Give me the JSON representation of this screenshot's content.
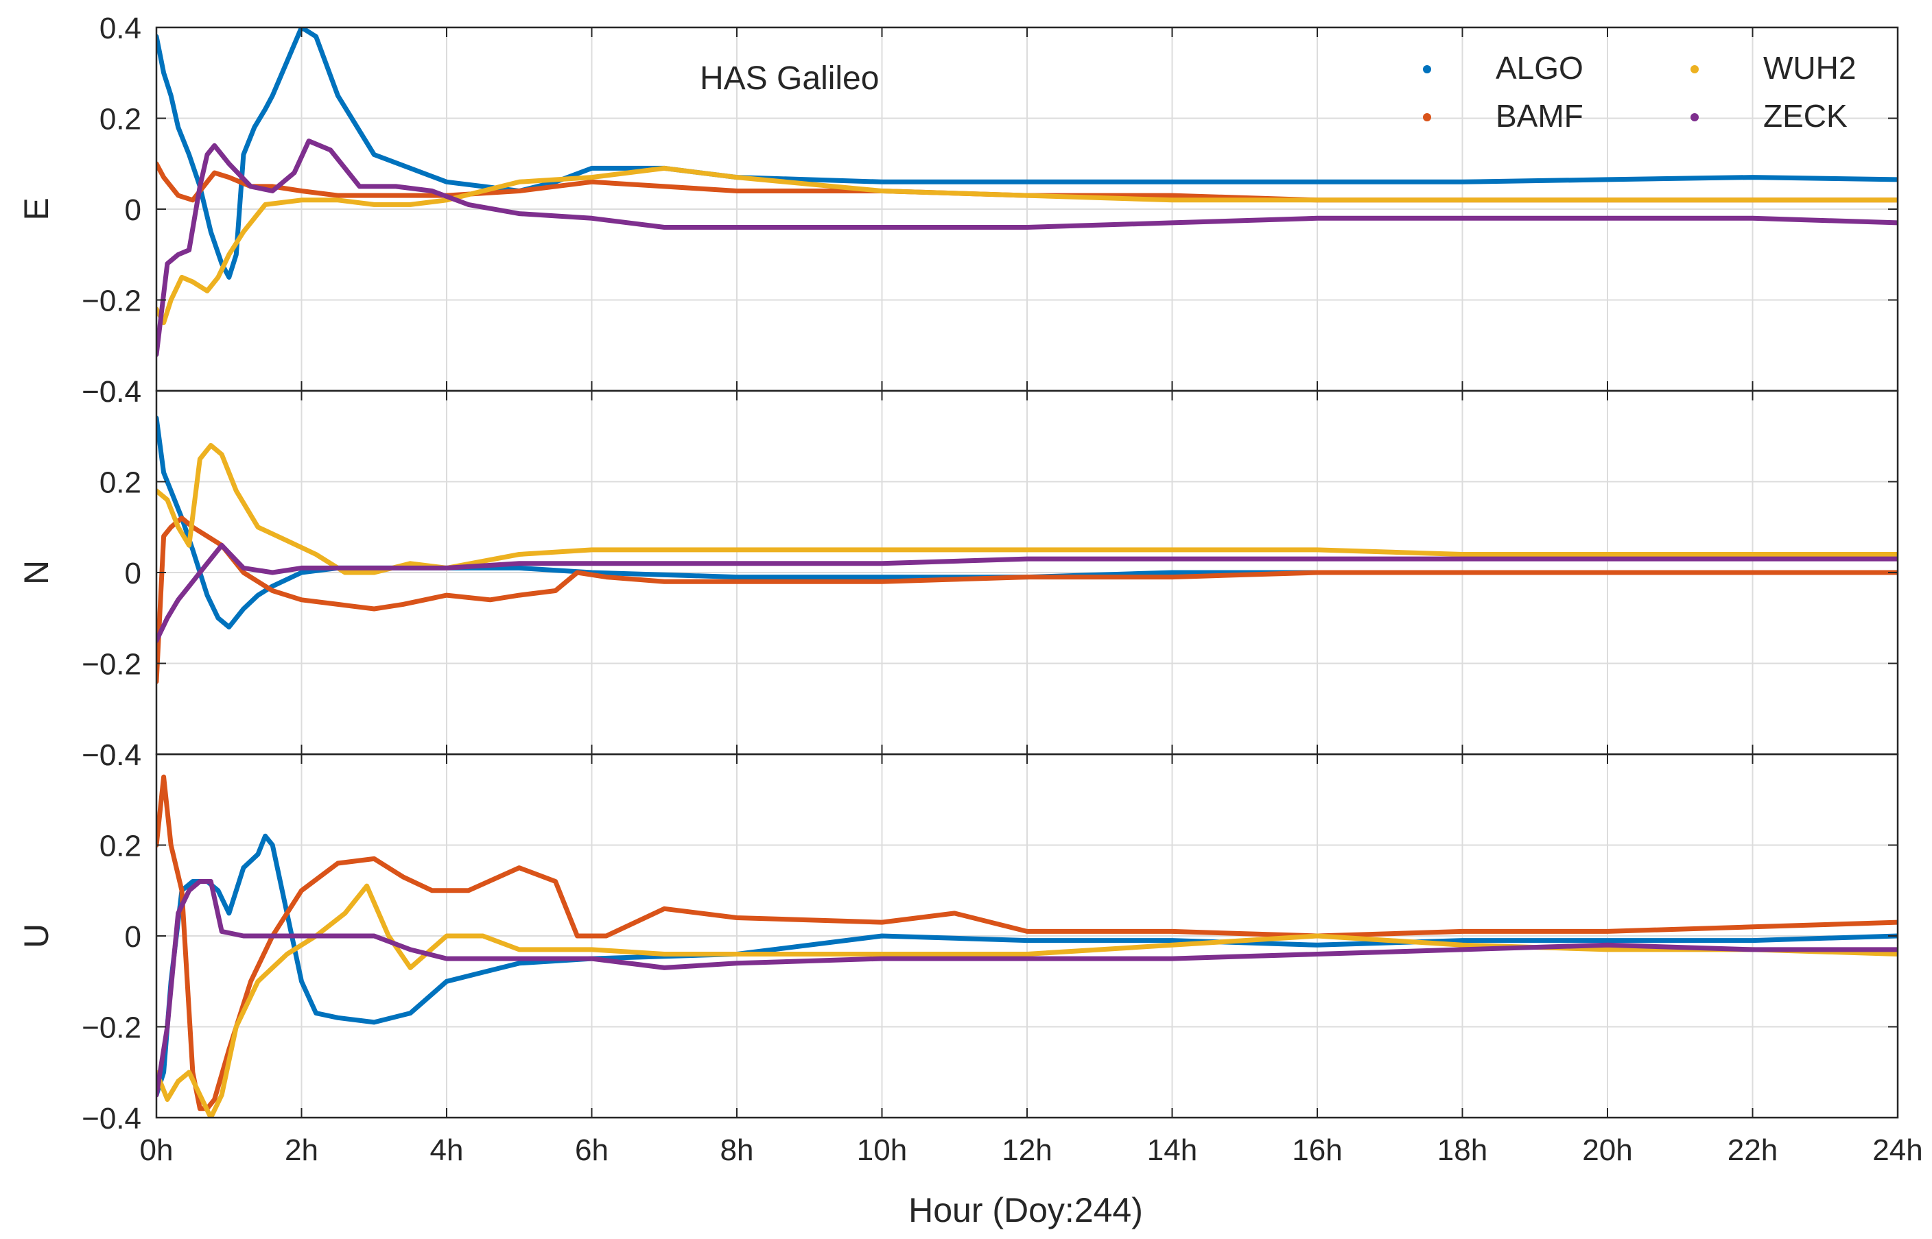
{
  "chart_data": {
    "type": "line",
    "title": "HAS Galileo",
    "xlabel": "Hour (Doy:244)",
    "x_ticks": [
      "0h",
      "2h",
      "4h",
      "6h",
      "8h",
      "10h",
      "12h",
      "14h",
      "16h",
      "18h",
      "20h",
      "22h",
      "24h"
    ],
    "xlim": [
      0,
      24
    ],
    "ylim": [
      -0.4,
      0.4
    ],
    "y_ticks": [
      "−0.4",
      "−0.2",
      "0",
      "0.2",
      "0.4"
    ],
    "grid": true,
    "legend_position": "top-right",
    "series_meta": [
      {
        "name": "ALGO",
        "color": "#0072BD"
      },
      {
        "name": "BAMF",
        "color": "#D95319"
      },
      {
        "name": "WUH2",
        "color": "#EDB120"
      },
      {
        "name": "ZECK",
        "color": "#7E2F8E"
      }
    ],
    "panels": [
      {
        "ylabel": "E",
        "series": [
          {
            "name": "ALGO",
            "x": [
              0,
              0.1,
              0.2,
              0.3,
              0.45,
              0.6,
              0.75,
              0.9,
              1.0,
              1.1,
              1.2,
              1.35,
              1.5,
              1.6,
              2.0,
              2.2,
              2.5,
              3.0,
              3.5,
              4.0,
              4.5,
              5.0,
              5.5,
              6.0,
              7.0,
              8.0,
              10.0,
              12.0,
              14.0,
              16.0,
              18.0,
              20.0,
              22.0,
              24.0
            ],
            "y": [
              0.38,
              0.3,
              0.25,
              0.18,
              0.12,
              0.05,
              -0.05,
              -0.12,
              -0.15,
              -0.1,
              0.12,
              0.18,
              0.22,
              0.25,
              0.4,
              0.38,
              0.25,
              0.12,
              0.09,
              0.06,
              0.05,
              0.04,
              0.06,
              0.09,
              0.09,
              0.07,
              0.06,
              0.06,
              0.06,
              0.06,
              0.06,
              0.065,
              0.07,
              0.065
            ]
          },
          {
            "name": "BAMF",
            "x": [
              0,
              0.1,
              0.2,
              0.3,
              0.5,
              0.8,
              1.0,
              1.3,
              1.6,
              2.0,
              2.5,
              3.0,
              3.5,
              4.0,
              5.0,
              6.0,
              7.0,
              8.0,
              10.0,
              12.0,
              14.0,
              16.0,
              18.0,
              20.0,
              22.0,
              24.0
            ],
            "y": [
              0.1,
              0.07,
              0.05,
              0.03,
              0.02,
              0.08,
              0.07,
              0.05,
              0.05,
              0.04,
              0.03,
              0.03,
              0.03,
              0.03,
              0.04,
              0.06,
              0.05,
              0.04,
              0.04,
              0.03,
              0.03,
              0.02,
              0.02,
              0.02,
              0.02,
              0.02
            ]
          },
          {
            "name": "WUH2",
            "x": [
              0,
              0.1,
              0.2,
              0.35,
              0.5,
              0.7,
              0.85,
              1.0,
              1.2,
              1.5,
              2.0,
              2.5,
              3.0,
              3.5,
              4.0,
              4.5,
              5.0,
              6.0,
              7.0,
              8.0,
              10.0,
              12.0,
              14.0,
              16.0,
              18.0,
              20.0,
              22.0,
              24.0
            ],
            "y": [
              -0.22,
              -0.25,
              -0.2,
              -0.15,
              -0.16,
              -0.18,
              -0.15,
              -0.1,
              -0.05,
              0.01,
              0.02,
              0.02,
              0.01,
              0.01,
              0.02,
              0.04,
              0.06,
              0.07,
              0.09,
              0.07,
              0.04,
              0.03,
              0.02,
              0.02,
              0.02,
              0.02,
              0.02,
              0.02
            ]
          },
          {
            "name": "ZECK",
            "x": [
              0,
              0.15,
              0.3,
              0.45,
              0.6,
              0.7,
              0.8,
              1.0,
              1.3,
              1.6,
              1.9,
              2.1,
              2.4,
              2.8,
              3.3,
              3.8,
              4.3,
              5.0,
              6.0,
              7.0,
              8.0,
              10.0,
              12.0,
              14.0,
              16.0,
              18.0,
              20.0,
              22.0,
              24.0
            ],
            "y": [
              -0.32,
              -0.12,
              -0.1,
              -0.09,
              0.05,
              0.12,
              0.14,
              0.1,
              0.05,
              0.04,
              0.08,
              0.15,
              0.13,
              0.05,
              0.05,
              0.04,
              0.01,
              -0.01,
              -0.02,
              -0.04,
              -0.04,
              -0.04,
              -0.04,
              -0.03,
              -0.02,
              -0.02,
              -0.02,
              -0.02,
              -0.03
            ]
          }
        ]
      },
      {
        "ylabel": "N",
        "series": [
          {
            "name": "ALGO",
            "x": [
              0,
              0.1,
              0.2,
              0.35,
              0.5,
              0.7,
              0.85,
              1.0,
              1.2,
              1.4,
              1.6,
              2.0,
              2.5,
              3.0,
              4.0,
              5.0,
              6.0,
              8.0,
              10.0,
              12.0,
              14.0,
              16.0,
              18.0,
              20.0,
              22.0,
              24.0
            ],
            "y": [
              0.34,
              0.22,
              0.18,
              0.12,
              0.05,
              -0.05,
              -0.1,
              -0.12,
              -0.08,
              -0.05,
              -0.03,
              0.0,
              0.01,
              0.01,
              0.01,
              0.01,
              0.0,
              -0.01,
              -0.01,
              -0.01,
              0.0,
              0.0,
              0.0,
              0.0,
              0.0,
              0.0
            ]
          },
          {
            "name": "BAMF",
            "x": [
              0,
              0.1,
              0.2,
              0.35,
              0.5,
              0.7,
              0.9,
              1.2,
              1.6,
              2.0,
              2.5,
              3.0,
              3.4,
              4.0,
              4.6,
              5.0,
              5.5,
              5.8,
              6.2,
              7.0,
              8.0,
              10.0,
              12.0,
              14.0,
              16.0,
              18.0,
              20.0,
              22.0,
              24.0
            ],
            "y": [
              -0.24,
              0.08,
              0.1,
              0.12,
              0.1,
              0.08,
              0.06,
              0.0,
              -0.04,
              -0.06,
              -0.07,
              -0.08,
              -0.07,
              -0.05,
              -0.06,
              -0.05,
              -0.04,
              0.0,
              -0.01,
              -0.02,
              -0.02,
              -0.02,
              -0.01,
              -0.01,
              0.0,
              0.0,
              0.0,
              0.0,
              0.0
            ]
          },
          {
            "name": "WUH2",
            "x": [
              0,
              0.15,
              0.3,
              0.45,
              0.6,
              0.75,
              0.9,
              1.1,
              1.4,
              1.8,
              2.2,
              2.6,
              3.0,
              3.5,
              4.0,
              5.0,
              6.0,
              7.0,
              8.0,
              10.0,
              12.0,
              14.0,
              16.0,
              18.0,
              20.0,
              22.0,
              24.0
            ],
            "y": [
              0.18,
              0.16,
              0.1,
              0.06,
              0.25,
              0.28,
              0.26,
              0.18,
              0.1,
              0.07,
              0.04,
              0.0,
              0.0,
              0.02,
              0.01,
              0.04,
              0.05,
              0.05,
              0.05,
              0.05,
              0.05,
              0.05,
              0.05,
              0.04,
              0.04,
              0.04,
              0.04
            ]
          },
          {
            "name": "ZECK",
            "x": [
              0,
              0.15,
              0.3,
              0.45,
              0.6,
              0.75,
              0.9,
              1.2,
              1.6,
              2.0,
              3.0,
              4.0,
              5.0,
              6.0,
              8.0,
              10.0,
              12.0,
              14.0,
              16.0,
              18.0,
              20.0,
              22.0,
              24.0
            ],
            "y": [
              -0.15,
              -0.1,
              -0.06,
              -0.03,
              0.0,
              0.03,
              0.06,
              0.01,
              0.0,
              0.01,
              0.01,
              0.01,
              0.02,
              0.02,
              0.02,
              0.02,
              0.03,
              0.03,
              0.03,
              0.03,
              0.03,
              0.03,
              0.03
            ]
          }
        ]
      },
      {
        "ylabel": "U",
        "series": [
          {
            "name": "ALGO",
            "x": [
              0,
              0.1,
              0.2,
              0.35,
              0.5,
              0.7,
              0.85,
              1.0,
              1.2,
              1.4,
              1.5,
              1.6,
              2.0,
              2.2,
              2.5,
              3.0,
              3.5,
              4.0,
              4.5,
              5.0,
              6.0,
              8.0,
              10.0,
              12.0,
              14.0,
              16.0,
              18.0,
              20.0,
              22.0,
              24.0
            ],
            "y": [
              -0.35,
              -0.3,
              -0.1,
              0.1,
              0.12,
              0.12,
              0.1,
              0.05,
              0.15,
              0.18,
              0.22,
              0.2,
              -0.1,
              -0.17,
              -0.18,
              -0.19,
              -0.17,
              -0.1,
              -0.08,
              -0.06,
              -0.05,
              -0.04,
              0.0,
              -0.01,
              -0.01,
              -0.02,
              -0.01,
              -0.01,
              -0.01,
              0.0
            ]
          },
          {
            "name": "BAMF",
            "x": [
              0,
              0.1,
              0.2,
              0.35,
              0.5,
              0.6,
              0.7,
              0.8,
              1.0,
              1.3,
              1.6,
              2.0,
              2.5,
              3.0,
              3.4,
              3.8,
              4.3,
              5.0,
              5.5,
              5.8,
              6.2,
              7.0,
              8.0,
              10.0,
              11.0,
              12.0,
              14.0,
              16.0,
              18.0,
              20.0,
              22.0,
              24.0
            ],
            "y": [
              0.2,
              0.35,
              0.2,
              0.1,
              -0.3,
              -0.38,
              -0.38,
              -0.36,
              -0.25,
              -0.1,
              0.0,
              0.1,
              0.16,
              0.17,
              0.13,
              0.1,
              0.1,
              0.15,
              0.12,
              0.0,
              0.0,
              0.06,
              0.04,
              0.03,
              0.05,
              0.01,
              0.01,
              0.0,
              0.01,
              0.01,
              0.02,
              0.03
            ]
          },
          {
            "name": "WUH2",
            "x": [
              0,
              0.15,
              0.3,
              0.45,
              0.6,
              0.75,
              0.9,
              1.1,
              1.4,
              1.8,
              2.2,
              2.6,
              2.9,
              3.2,
              3.5,
              4.0,
              4.5,
              5.0,
              6.0,
              7.0,
              8.0,
              10.0,
              12.0,
              14.0,
              16.0,
              18.0,
              20.0,
              22.0,
              24.0
            ],
            "y": [
              -0.3,
              -0.36,
              -0.32,
              -0.3,
              -0.35,
              -0.4,
              -0.35,
              -0.2,
              -0.1,
              -0.04,
              0.0,
              0.05,
              0.11,
              0.0,
              -0.07,
              0.0,
              0.0,
              -0.03,
              -0.03,
              -0.04,
              -0.04,
              -0.04,
              -0.04,
              -0.02,
              0.0,
              -0.02,
              -0.03,
              -0.03,
              -0.04
            ]
          },
          {
            "name": "ZECK",
            "x": [
              0,
              0.15,
              0.3,
              0.45,
              0.6,
              0.75,
              0.9,
              1.2,
              1.5,
              2.0,
              2.5,
              3.0,
              3.5,
              4.0,
              5.0,
              6.0,
              7.0,
              8.0,
              10.0,
              12.0,
              14.0,
              16.0,
              18.0,
              20.0,
              22.0,
              24.0
            ],
            "y": [
              -0.35,
              -0.2,
              0.05,
              0.1,
              0.12,
              0.12,
              0.01,
              0.0,
              0.0,
              0.0,
              0.0,
              0.0,
              -0.03,
              -0.05,
              -0.05,
              -0.05,
              -0.07,
              -0.06,
              -0.05,
              -0.05,
              -0.05,
              -0.04,
              -0.03,
              -0.02,
              -0.03,
              -0.03
            ]
          }
        ]
      }
    ]
  }
}
